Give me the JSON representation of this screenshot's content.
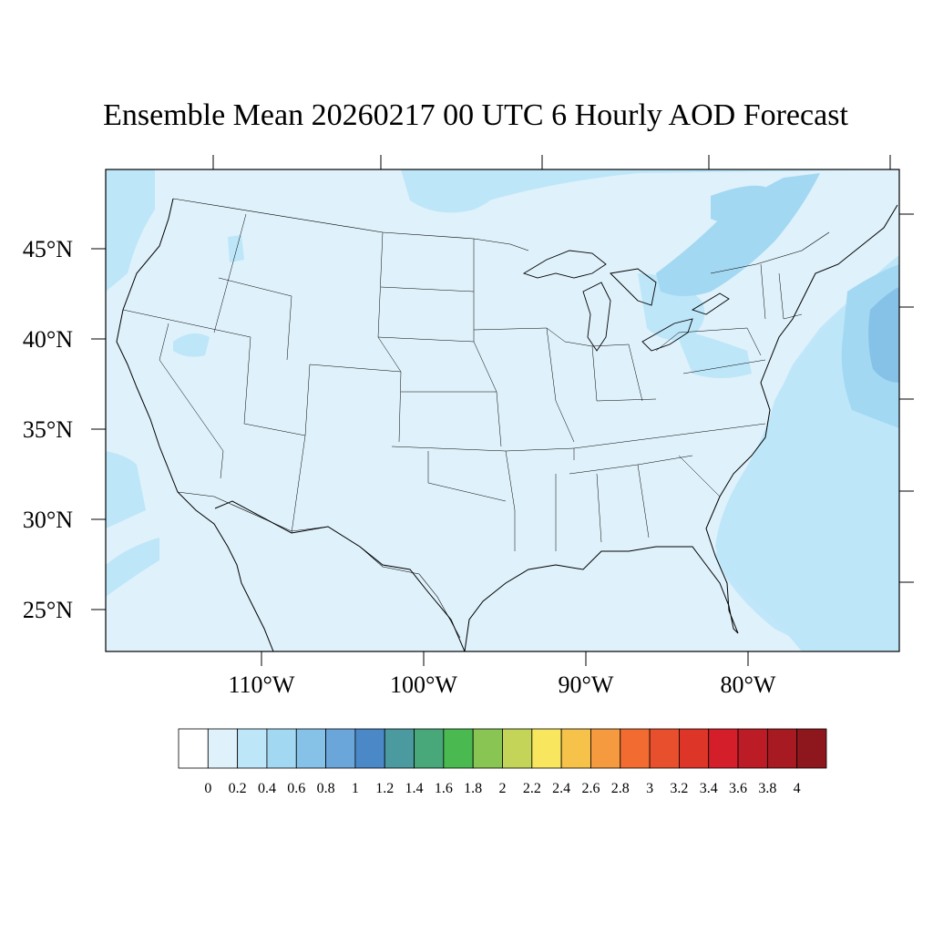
{
  "title": "Ensemble Mean 20260217 00 UTC 6 Hourly AOD Forecast",
  "map": {
    "lat_labels": [
      "45°N",
      "40°N",
      "35°N",
      "30°N",
      "25°N"
    ],
    "lon_labels": [
      "110°W",
      "100°W",
      "90°W",
      "80°W"
    ],
    "colors": {
      "background_aod": "#dff1fb",
      "aod_0_4": "#bde6f8",
      "aod_0_6": "#a3d8f2",
      "aod_0_8": "#86c2e8",
      "border": "#000000"
    }
  },
  "colorbar": {
    "labels": [
      "0",
      "0.2",
      "0.4",
      "0.6",
      "0.8",
      "1",
      "1.2",
      "1.4",
      "1.6",
      "1.8",
      "2",
      "2.2",
      "2.4",
      "2.6",
      "2.8",
      "3",
      "3.2",
      "3.4",
      "3.6",
      "3.8",
      "4"
    ],
    "colors": [
      "#ffffff",
      "#dff1fb",
      "#bde6f8",
      "#a3d8f2",
      "#86c2e8",
      "#6aa6da",
      "#4a88c8",
      "#4b9aa0",
      "#48a87a",
      "#4aba50",
      "#88c552",
      "#c3d458",
      "#f7e65e",
      "#f6c24a",
      "#f59a3e",
      "#f26b31",
      "#e84f2c",
      "#dd3528",
      "#d41f2a",
      "#bb1c26",
      "#a81a22",
      "#8e171e"
    ]
  }
}
